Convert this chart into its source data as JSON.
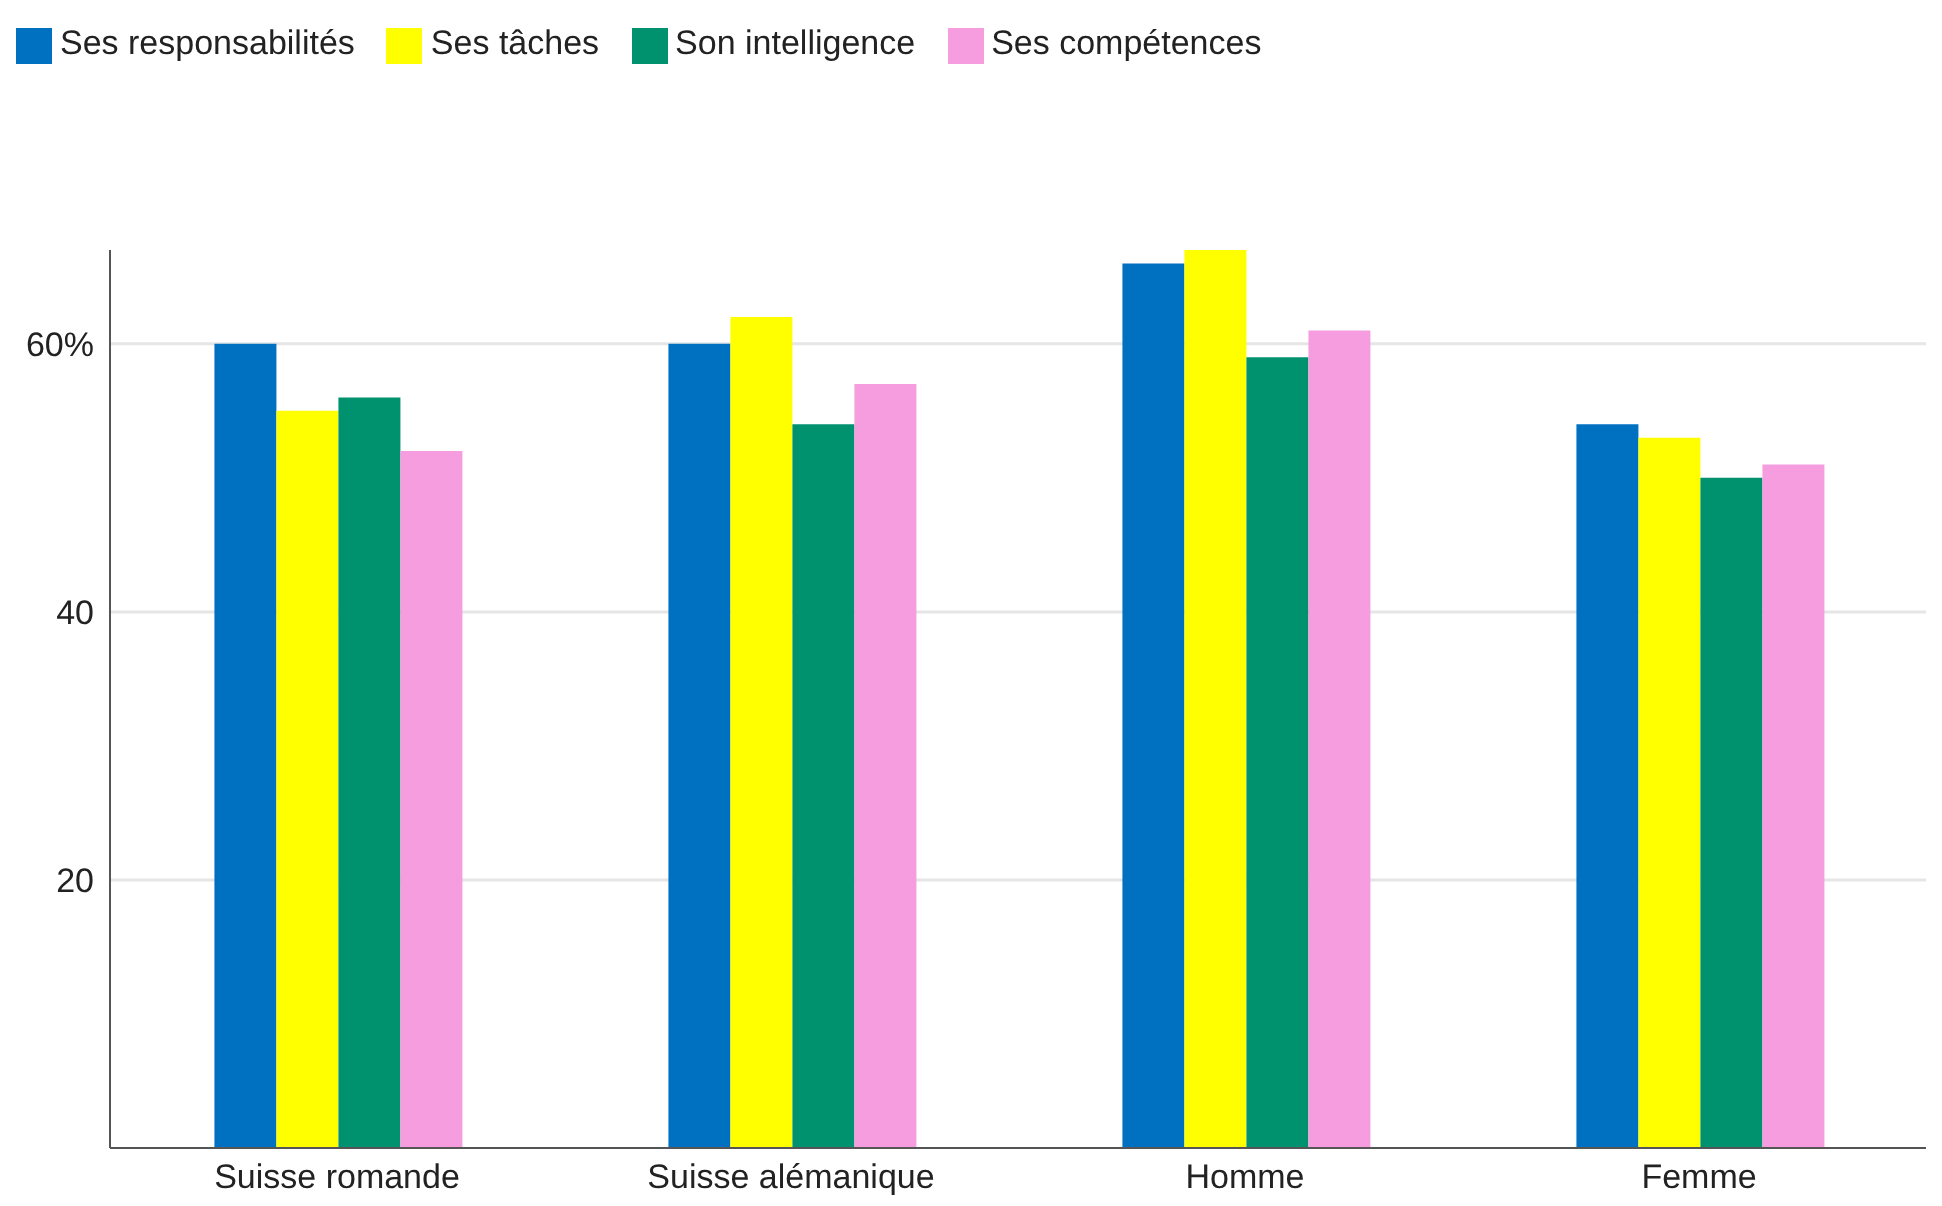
{
  "chart_data": {
    "type": "bar",
    "categories": [
      "Suisse romande",
      "Suisse alémanique",
      "Homme",
      "Femme"
    ],
    "series": [
      {
        "name": "Ses responsabilités",
        "color": "#0070c0",
        "values": [
          60,
          60,
          66,
          54
        ]
      },
      {
        "name": "Ses tâches",
        "color": "#ffff00",
        "values": [
          55,
          62,
          67,
          53
        ]
      },
      {
        "name": "Son intelligence",
        "color": "#00916e",
        "values": [
          56,
          54,
          59,
          50
        ]
      },
      {
        "name": "Ses compétences",
        "color": "#f59ddf",
        "values": [
          52,
          57,
          61,
          51
        ]
      }
    ],
    "ylim": [
      0,
      67
    ],
    "yticks": [
      20,
      40,
      {
        "value": 60,
        "label": "60%"
      }
    ],
    "grid": "y",
    "legend": "top left"
  }
}
